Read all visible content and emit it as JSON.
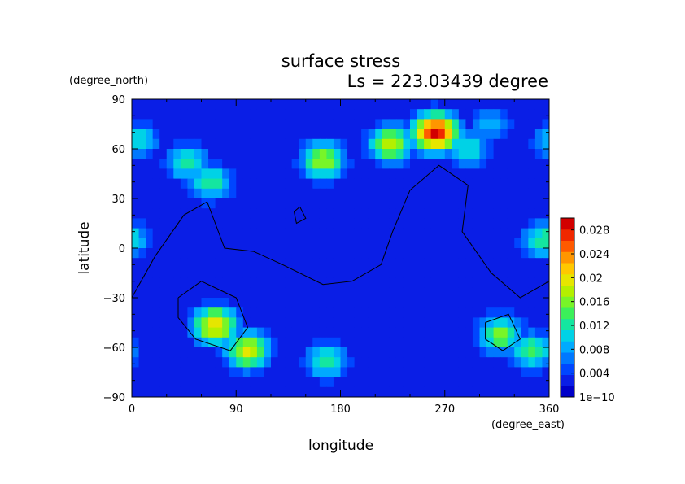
{
  "chart_data": {
    "type": "heatmap",
    "title": "surface stress",
    "subtitle": "Ls = 223.03439 degree",
    "xlabel": "longitude",
    "ylabel": "latitude",
    "x_unit": "(degree_east)",
    "y_unit": "(degree_north)",
    "xlim": [
      0,
      360
    ],
    "ylim": [
      -90,
      90
    ],
    "x_ticks": [
      "0",
      "90",
      "180",
      "270",
      "360"
    ],
    "y_ticks": [
      "90",
      "60",
      "30",
      "0",
      "−30",
      "−60",
      "−90"
    ],
    "colorbar": {
      "min": 0,
      "max": 0.03,
      "labels": [
        "0.028",
        "0.024",
        "0.02",
        "0.016",
        "0.012",
        "0.008",
        "0.004",
        "1e−10"
      ],
      "colors": [
        "#0000c8",
        "#0a1ee6",
        "#0046ff",
        "#0078ff",
        "#00aaff",
        "#00d2e6",
        "#14e6a0",
        "#3cf05a",
        "#78f528",
        "#b4f000",
        "#e6e600",
        "#ffc800",
        "#ff9600",
        "#ff5a00",
        "#f02800",
        "#d20000"
      ]
    },
    "background_value": 0.003,
    "features": [
      {
        "lon": 72,
        "lat": -47,
        "value": 0.021
      },
      {
        "lon": 100,
        "lat": -62,
        "value": 0.019
      },
      {
        "lon": 262,
        "lat": 70,
        "value": 0.029
      },
      {
        "lon": 223,
        "lat": 63,
        "value": 0.018
      },
      {
        "lon": 165,
        "lat": 53,
        "value": 0.017
      },
      {
        "lon": 318,
        "lat": -52,
        "value": 0.016
      },
      {
        "lon": 345,
        "lat": -62,
        "value": 0.014
      },
      {
        "lon": 48,
        "lat": 52,
        "value": 0.013
      },
      {
        "lon": 68,
        "lat": 40,
        "value": 0.013
      },
      {
        "lon": 355,
        "lat": 5,
        "value": 0.013
      },
      {
        "lon": 5,
        "lat": 65,
        "value": 0.011
      },
      {
        "lon": 168,
        "lat": -68,
        "value": 0.013
      },
      {
        "lon": 310,
        "lat": 75,
        "value": 0.009
      },
      {
        "lon": 290,
        "lat": 60,
        "value": 0.012
      }
    ],
    "contours": [
      [
        [
          0,
          -30
        ],
        [
          20,
          -5
        ],
        [
          45,
          20
        ],
        [
          65,
          28
        ],
        [
          72,
          15
        ],
        [
          80,
          0
        ],
        [
          105,
          -2
        ],
        [
          130,
          -10
        ],
        [
          165,
          -22
        ],
        [
          190,
          -20
        ],
        [
          215,
          -10
        ],
        [
          225,
          10
        ],
        [
          240,
          35
        ],
        [
          265,
          50
        ],
        [
          290,
          38
        ],
        [
          285,
          10
        ],
        [
          310,
          -15
        ],
        [
          335,
          -30
        ],
        [
          360,
          -20
        ]
      ],
      [
        [
          145,
          25
        ],
        [
          150,
          18
        ],
        [
          142,
          15
        ],
        [
          140,
          22
        ],
        [
          145,
          25
        ]
      ],
      [
        [
          40,
          -30
        ],
        [
          60,
          -20
        ],
        [
          90,
          -30
        ],
        [
          100,
          -48
        ],
        [
          85,
          -62
        ],
        [
          55,
          -55
        ],
        [
          40,
          -42
        ],
        [
          40,
          -30
        ]
      ],
      [
        [
          305,
          -45
        ],
        [
          325,
          -40
        ],
        [
          335,
          -55
        ],
        [
          320,
          -62
        ],
        [
          305,
          -55
        ],
        [
          305,
          -45
        ]
      ]
    ]
  }
}
